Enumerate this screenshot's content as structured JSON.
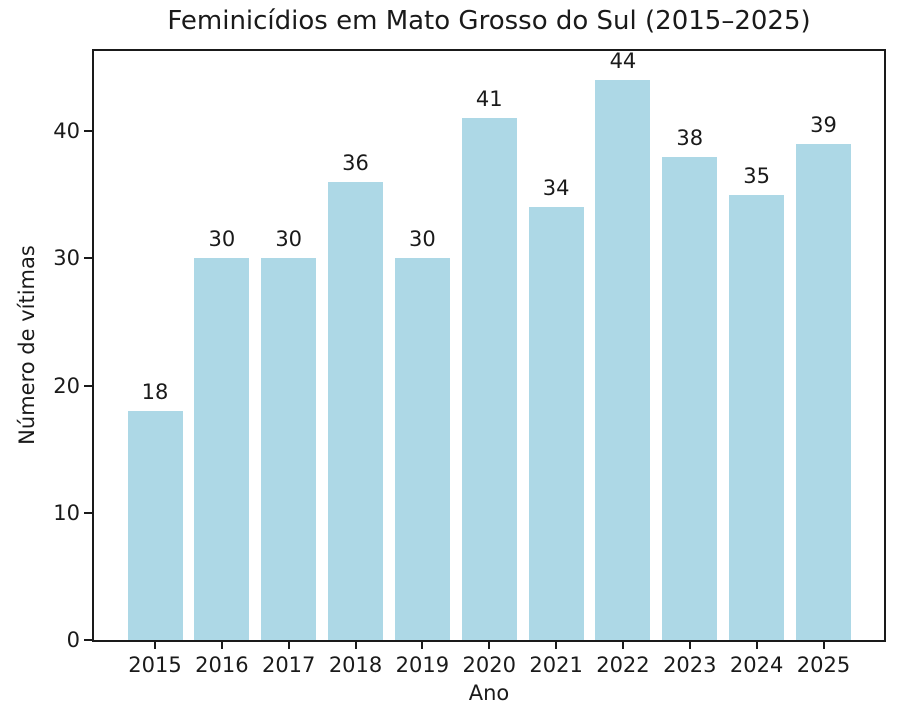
{
  "chart_data": {
    "type": "bar",
    "title": "Feminicídios em Mato Grosso do Sul (2015–2025)",
    "xlabel": "Ano",
    "ylabel": "Número de vítimas",
    "categories": [
      "2015",
      "2016",
      "2017",
      "2018",
      "2019",
      "2020",
      "2021",
      "2022",
      "2023",
      "2024",
      "2025"
    ],
    "values": [
      18,
      30,
      30,
      36,
      30,
      41,
      34,
      44,
      38,
      35,
      39
    ],
    "bar_value_labels": [
      "18",
      "30",
      "30",
      "36",
      "30",
      "41",
      "34",
      "44",
      "38",
      "35",
      "39"
    ],
    "yticks": [
      0,
      10,
      20,
      30,
      40
    ],
    "ylim": [
      0,
      46.3
    ],
    "grid": false,
    "legend": null,
    "colors": {
      "bar_fill": "#ADD8E6",
      "text": "#1a1a1a",
      "spine": "#1a1a1a",
      "background": "#ffffff"
    }
  }
}
